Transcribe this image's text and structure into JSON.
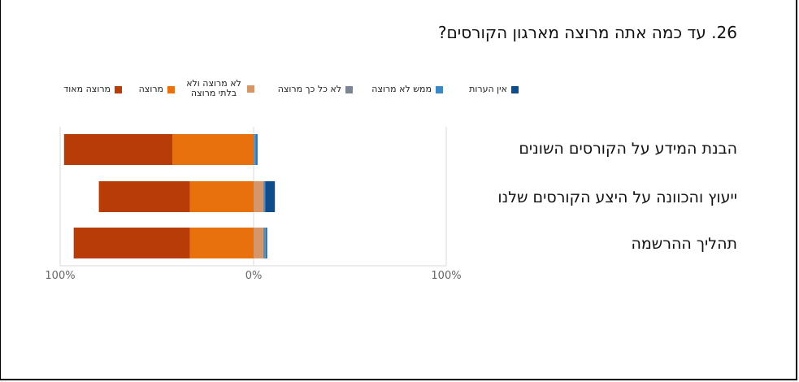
{
  "chart_data": {
    "type": "bar",
    "orientation": "horizontal-stacked-diverging",
    "title": "26. עד כמה אתה מרוצה מארגון הקורסים?",
    "categories": [
      "הבנת המידע על הקורסים השונים",
      "ייעוץ והכוונה על היצע הקורסים שלנו",
      "תהליך ההרשמה"
    ],
    "series": [
      {
        "name": "מרוצה מאוד",
        "color": "#B83C08",
        "values": [
          56,
          47,
          60
        ]
      },
      {
        "name": "מרוצה",
        "color": "#E8700D",
        "values": [
          42,
          33,
          33
        ]
      },
      {
        "name": "לא מרוצה ולא בלתי מרוצה",
        "color": "#D5976A",
        "values": [
          0,
          5,
          5
        ]
      },
      {
        "name": "לא כל כך מרוצה",
        "color": "#7B8593",
        "values": [
          0.7,
          0.5,
          1
        ]
      },
      {
        "name": "ממש לא מרוצה",
        "color": "#3D88C2",
        "values": [
          0.8,
          0.5,
          0.5
        ]
      },
      {
        "name": "אין הערות",
        "color": "#0E4C8C",
        "values": [
          0.5,
          5,
          0.5
        ]
      }
    ],
    "xticks": [
      "100%",
      "0%",
      "100%"
    ],
    "xlim": [
      -100,
      100
    ],
    "legend_position": "top"
  }
}
